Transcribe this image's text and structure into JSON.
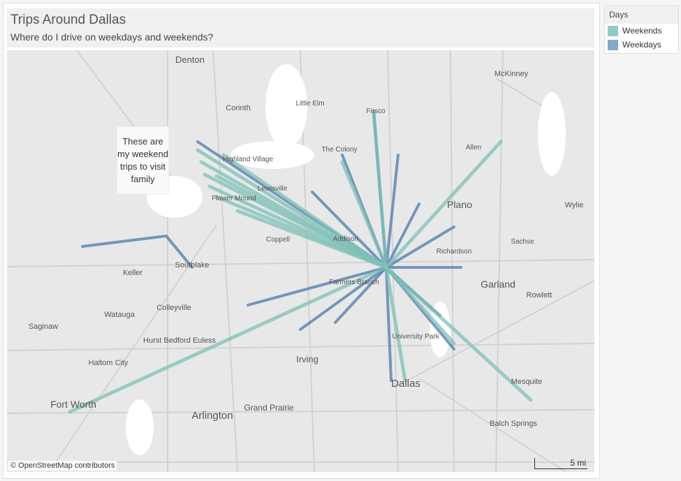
{
  "header": {
    "title": "Trips Around Dallas",
    "subtitle": "Where do I drive on weekdays and weekends?"
  },
  "legend": {
    "title": "Days",
    "items": [
      {
        "label": "Weekends",
        "color": "#93cbc4"
      },
      {
        "label": "Weekdays",
        "color": "#8aa6c6"
      }
    ]
  },
  "annotation": "These are my weekend trips to visit family",
  "map": {
    "attribution": "© OpenStreetMap contributors",
    "scale_label": "5 mi",
    "places": [
      "Denton",
      "McKinney",
      "Corinth",
      "Little Elm",
      "Frisco",
      "The Colony",
      "Allen",
      "Plano",
      "Wylie",
      "Sachse",
      "Keller",
      "Southlake",
      "Coppell",
      "Garland",
      "Rowlett",
      "Watauga",
      "Colleyville",
      "Saginaw",
      "Hurst Bedford Euless",
      "Haltom City",
      "Irving",
      "University Park",
      "Dallas",
      "Mesquite",
      "Fort Worth",
      "Grand Prairie",
      "Arlington",
      "Balch Springs",
      "Highland Village",
      "Lewisville",
      "Flower Mound",
      "Farmers Branch",
      "Addison",
      "Richardson"
    ],
    "weekend_color": "#7fc0b7",
    "weekday_color": "#4f7aab"
  }
}
